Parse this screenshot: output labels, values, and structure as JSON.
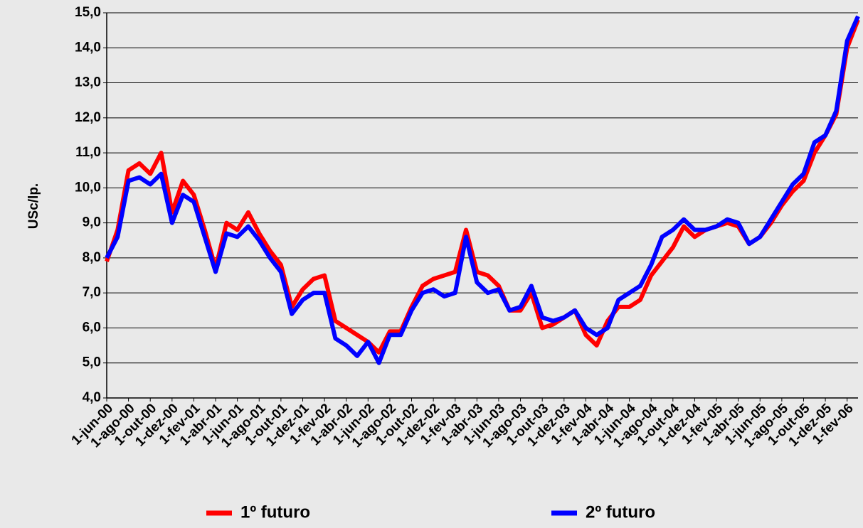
{
  "chart_data": {
    "type": "line",
    "y_label": "USc/lp.",
    "categories": [
      "1-jun-00",
      null,
      "1-ago-00",
      null,
      "1-out-00",
      null,
      "1-dez-00",
      null,
      "1-fev-01",
      null,
      "1-abr-01",
      null,
      "1-jun-01",
      null,
      "1-ago-01",
      null,
      "1-out-01",
      null,
      "1-dez-01",
      null,
      "1-fev-02",
      null,
      "1-abr-02",
      null,
      "1-jun-02",
      null,
      "1-ago-02",
      null,
      "1-out-02",
      null,
      "1-dez-02",
      null,
      "1-fev-03",
      null,
      "1-abr-03",
      null,
      "1-jun-03",
      null,
      "1-ago-03",
      null,
      "1-out-03",
      null,
      "1-dez-03",
      null,
      "1-fev-04",
      null,
      "1-abr-04",
      null,
      "1-jun-04",
      null,
      "1-ago-04",
      null,
      "1-out-04",
      null,
      "1-dez-04",
      null,
      "1-fev-05",
      null,
      "1-abr-05",
      null,
      "1-jun-05",
      null,
      "1-ago-05",
      null,
      "1-out-05",
      null,
      "1-dez-05",
      null,
      "1-fev-06",
      null
    ],
    "series": [
      {
        "name": "1º futuro",
        "color": "#ff0000",
        "values": [
          7.9,
          8.8,
          10.5,
          10.7,
          10.4,
          11.0,
          9.3,
          10.2,
          9.8,
          8.8,
          7.7,
          9.0,
          8.8,
          9.3,
          8.7,
          8.2,
          7.8,
          6.6,
          7.1,
          7.4,
          7.5,
          6.2,
          6.0,
          5.8,
          5.6,
          5.3,
          5.9,
          5.9,
          6.6,
          7.2,
          7.4,
          7.5,
          7.6,
          8.8,
          7.6,
          7.5,
          7.2,
          6.5,
          6.5,
          7.0,
          6.0,
          6.1,
          6.3,
          6.5,
          5.8,
          5.5,
          6.2,
          6.6,
          6.6,
          6.8,
          7.5,
          7.9,
          8.3,
          8.9,
          8.6,
          8.8,
          8.9,
          9.0,
          8.9,
          8.4,
          8.6,
          9.0,
          9.5,
          9.9,
          10.2,
          11.0,
          11.5,
          12.1,
          14.0,
          14.8
        ]
      },
      {
        "name": "2º futuro",
        "color": "#0000ff",
        "values": [
          8.0,
          8.6,
          10.2,
          10.3,
          10.1,
          10.4,
          9.0,
          9.8,
          9.6,
          8.6,
          7.6,
          8.7,
          8.6,
          8.9,
          8.5,
          8.0,
          7.6,
          6.4,
          6.8,
          7.0,
          7.0,
          5.7,
          5.5,
          5.2,
          5.6,
          5.0,
          5.8,
          5.8,
          6.5,
          7.0,
          7.1,
          6.9,
          7.0,
          8.6,
          7.3,
          7.0,
          7.1,
          6.5,
          6.6,
          7.2,
          6.3,
          6.2,
          6.3,
          6.5,
          6.0,
          5.8,
          6.0,
          6.8,
          7.0,
          7.2,
          7.8,
          8.6,
          8.8,
          9.1,
          8.8,
          8.8,
          8.9,
          9.1,
          9.0,
          8.4,
          8.6,
          9.1,
          9.6,
          10.1,
          10.4,
          11.3,
          11.5,
          12.2,
          14.2,
          14.9
        ]
      }
    ],
    "ylim": [
      4,
      15
    ],
    "yticks": [
      {
        "value": 4,
        "label": "4,0"
      },
      {
        "value": 5,
        "label": "5,0"
      },
      {
        "value": 6,
        "label": "6,0"
      },
      {
        "value": 7,
        "label": "7,0"
      },
      {
        "value": 8,
        "label": "8,0"
      },
      {
        "value": 9,
        "label": "9,0"
      },
      {
        "value": 10,
        "label": "10,0"
      },
      {
        "value": 11,
        "label": "11,0"
      },
      {
        "value": 12,
        "label": "12,0"
      },
      {
        "value": 13,
        "label": "13,0"
      },
      {
        "value": 14,
        "label": "14,0"
      },
      {
        "value": 15,
        "label": "15,0"
      }
    ],
    "grid": true,
    "legend": "bottom"
  }
}
